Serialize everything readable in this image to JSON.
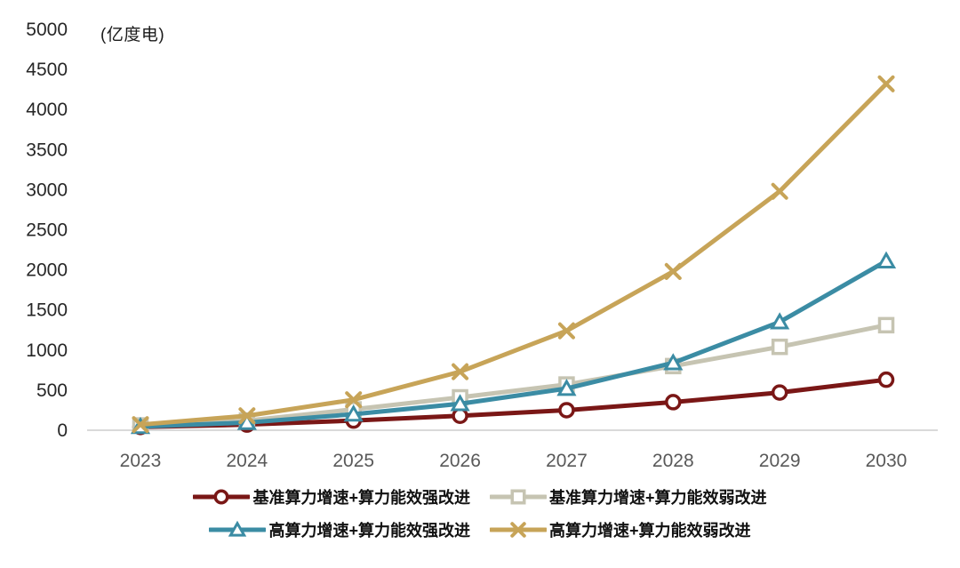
{
  "chart_data": {
    "type": "line",
    "title": "",
    "unit_label": "(亿度电)",
    "categories": [
      "2023",
      "2024",
      "2025",
      "2026",
      "2027",
      "2028",
      "2029",
      "2030"
    ],
    "series": [
      {
        "name": "基准算力增速+算力能效强改进",
        "color": "#7a1716",
        "marker": "circle",
        "values": [
          40,
          70,
          120,
          180,
          250,
          350,
          470,
          630
        ]
      },
      {
        "name": "基准算力增速+算力能效弱改进",
        "color": "#c6c4b2",
        "marker": "square",
        "values": [
          60,
          120,
          260,
          410,
          570,
          800,
          1040,
          1310
        ]
      },
      {
        "name": "高算力增速+算力能效强改进",
        "color": "#3b8ca4",
        "marker": "triangle",
        "values": [
          45,
          95,
          200,
          330,
          520,
          840,
          1350,
          2110
        ]
      },
      {
        "name": "高算力增速+算力能效弱改进",
        "color": "#c7a458",
        "marker": "x",
        "values": [
          70,
          180,
          380,
          730,
          1240,
          1980,
          2980,
          4320
        ]
      }
    ],
    "y_axis": {
      "min": 0,
      "max": 5000,
      "step": 500,
      "tick_labels": [
        "0",
        "500",
        "1000",
        "1500",
        "2000",
        "2500",
        "3000",
        "3500",
        "4000",
        "4500",
        "5000"
      ]
    },
    "x_axis": {
      "tick_labels": [
        "2023",
        "2024",
        "2025",
        "2026",
        "2027",
        "2028",
        "2029",
        "2030"
      ]
    },
    "legend_position": "bottom",
    "grid": false,
    "colors": {
      "axis_line": "#d9d9d9",
      "y_tick_text": "#262626",
      "x_tick_text": "#595959",
      "background": "#ffffff"
    }
  }
}
